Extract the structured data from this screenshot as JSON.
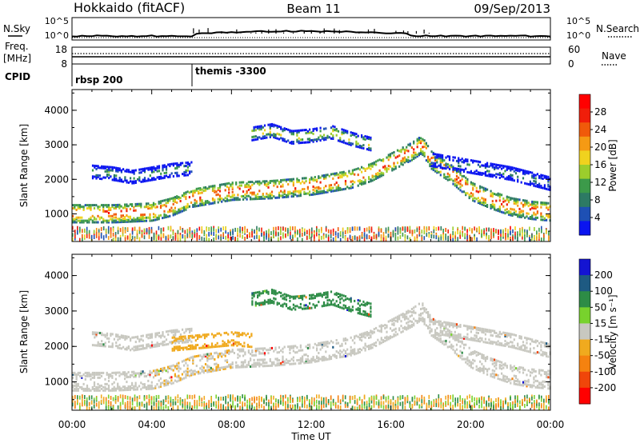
{
  "header": {
    "title_left": "Hokkaido (fitACF)",
    "title_center": "Beam 11",
    "title_right": "09/Sep/2013"
  },
  "noise_panel": {
    "left_label": "N.Sky",
    "left_ticks": [
      "10^5",
      "10^0"
    ],
    "right_ticks": [
      "10^5",
      "10^0"
    ],
    "right_label": "N.Search"
  },
  "freq_panel": {
    "left_label_line1": "Freq.",
    "left_label_line2": "[MHz]",
    "left_ticks": [
      "18",
      "8"
    ],
    "right_ticks": [
      "60",
      "0"
    ],
    "right_label": "Nave"
  },
  "cpid": {
    "label": "CPID",
    "segments": [
      {
        "label": "rbsp 200",
        "start_hour": 0.0
      },
      {
        "label": "themis -3300",
        "start_hour": 6.0
      }
    ]
  },
  "colors": {
    "power": [
      "#0a14f0",
      "#1e50b4",
      "#2d7a64",
      "#3c9a4a",
      "#9ccd2c",
      "#f0d21e",
      "#f59a14",
      "#f05a0a",
      "#f01e0a",
      "#ff0000"
    ],
    "velocity": [
      "#1414d2",
      "#1e5a82",
      "#2d8c46",
      "#78d22d",
      "#c8c8c0",
      "#f0aa1e",
      "#f5820f",
      "#f0460a",
      "#ff0000"
    ]
  },
  "chart_data": [
    {
      "type": "heatmap",
      "name": "power",
      "ylabel": "Slant Range [km]",
      "yticks": [
        1000,
        2000,
        3000,
        4000
      ],
      "ylim": [
        200,
        4600
      ],
      "xlim": [
        0,
        24
      ],
      "colorbar": {
        "label": "Power [dB]",
        "ticks": [
          4,
          8,
          12,
          16,
          20,
          24,
          28
        ],
        "range": [
          0,
          32
        ]
      },
      "features": [
        {
          "band": "main-F-region",
          "value_db": 28,
          "x": [
            0,
            2,
            4,
            5,
            6,
            8,
            10,
            12,
            13,
            14,
            15,
            16,
            17,
            17.5,
            18,
            19,
            20,
            21,
            22,
            23,
            24
          ],
          "y": [
            1050,
            1050,
            1100,
            1250,
            1500,
            1700,
            1750,
            1850,
            1950,
            2050,
            2250,
            2550,
            2850,
            3050,
            2600,
            2200,
            1700,
            1450,
            1250,
            1150,
            1100
          ]
        },
        {
          "band": "upper-E-layer",
          "value_db": 16,
          "x": [
            1,
            2,
            3,
            4,
            5,
            6
          ],
          "y": [
            2250,
            2200,
            2100,
            2200,
            2300,
            2350
          ]
        },
        {
          "band": "upper-patches",
          "value_db": 22,
          "x": [
            9,
            10,
            11,
            12,
            13,
            14,
            15
          ],
          "y": [
            3350,
            3450,
            3250,
            3300,
            3400,
            3200,
            3050
          ]
        },
        {
          "band": "late-upper-band",
          "value_db": 14,
          "x": [
            18,
            19,
            20,
            21,
            22,
            23,
            24
          ],
          "y": [
            2600,
            2500,
            2400,
            2300,
            2200,
            2050,
            1900
          ]
        }
      ]
    },
    {
      "type": "heatmap",
      "name": "velocity",
      "ylabel": "Slant Range [km]",
      "xlabel": "Time UT",
      "xticks": [
        "00:00",
        "04:00",
        "08:00",
        "12:00",
        "16:00",
        "20:00",
        "00:00"
      ],
      "yticks": [
        1000,
        2000,
        3000,
        4000
      ],
      "ylim": [
        200,
        4600
      ],
      "xlim": [
        0,
        24
      ],
      "colorbar": {
        "label": "Velocity [m s⁻¹]",
        "ticks": [
          200,
          100,
          50,
          15,
          -15,
          -50,
          -100,
          -200
        ],
        "range": [
          -250,
          250
        ]
      },
      "features": [
        {
          "band": "main-F-region",
          "value_ms": 0,
          "x": [
            0,
            2,
            4,
            5,
            6,
            8,
            10,
            12,
            13,
            14,
            15,
            16,
            17,
            17.5,
            18,
            19,
            20,
            21,
            22,
            23,
            24
          ],
          "y": [
            1050,
            1050,
            1100,
            1250,
            1500,
            1700,
            1750,
            1850,
            1950,
            2050,
            2250,
            2550,
            2850,
            3050,
            2600,
            2200,
            1700,
            1450,
            1250,
            1150,
            1100
          ]
        },
        {
          "band": "upper-E-layer",
          "value_ms": 0,
          "x": [
            1,
            2,
            3,
            4,
            5,
            6
          ],
          "y": [
            2250,
            2200,
            2100,
            2200,
            2300,
            2350
          ]
        },
        {
          "band": "upper-patches",
          "value_ms": 60,
          "x": [
            9,
            10,
            11,
            12,
            13,
            14,
            15
          ],
          "y": [
            3350,
            3450,
            3250,
            3300,
            3400,
            3200,
            3050
          ]
        },
        {
          "band": "morning-return",
          "value_ms": -40,
          "x": [
            5,
            6,
            7,
            8,
            9
          ],
          "y": [
            2100,
            2150,
            2200,
            2250,
            2200
          ]
        },
        {
          "band": "late-upper-band",
          "value_ms": 0,
          "x": [
            18,
            19,
            20,
            21,
            22,
            23,
            24
          ],
          "y": [
            2600,
            2500,
            2400,
            2300,
            2200,
            2050,
            1900
          ]
        }
      ]
    }
  ]
}
